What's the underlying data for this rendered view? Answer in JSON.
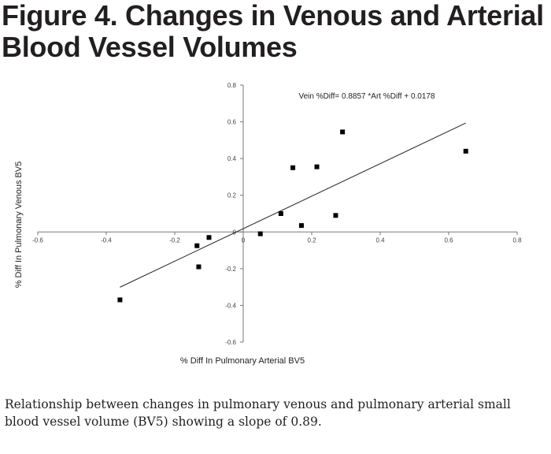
{
  "figure": {
    "title_line1": "Figure 4. Changes in Venous and Arterial",
    "title_line2": "Blood Vessel Volumes",
    "caption_line1": "Relationship between changes in pulmonary venous and pulmonary arterial small",
    "caption_line2": "blood vessel volume (BV5) showing a slope of 0.89."
  },
  "chart_data": {
    "type": "scatter",
    "title": "",
    "xlabel": "% Diff In Pulmonary Arterial BV5",
    "ylabel": "% Diff In Pulmonary Venous BV5",
    "xlim": [
      -0.6,
      0.8
    ],
    "ylim": [
      -0.6,
      0.8
    ],
    "x_ticks": [
      "-0.6",
      "-0.4",
      "-0.2",
      "0",
      "0.2",
      "0.4",
      "0.6",
      "0.8"
    ],
    "y_ticks": [
      "-0.6",
      "-0.4",
      "-0.2",
      "0",
      "0.2",
      "0.4",
      "0.6",
      "0.8"
    ],
    "grid": false,
    "legend": "none",
    "marker": "square",
    "marker_color": "#000000",
    "points": [
      {
        "x": -0.36,
        "y": -0.37
      },
      {
        "x": -0.135,
        "y": -0.075
      },
      {
        "x": -0.13,
        "y": -0.19
      },
      {
        "x": -0.1,
        "y": -0.03
      },
      {
        "x": 0.05,
        "y": -0.01
      },
      {
        "x": 0.11,
        "y": 0.1
      },
      {
        "x": 0.145,
        "y": 0.35
      },
      {
        "x": 0.17,
        "y": 0.035
      },
      {
        "x": 0.215,
        "y": 0.355
      },
      {
        "x": 0.27,
        "y": 0.09
      },
      {
        "x": 0.29,
        "y": 0.545
      },
      {
        "x": 0.65,
        "y": 0.44
      }
    ],
    "trendline": {
      "slope": 0.8857,
      "intercept": 0.0178,
      "x_range": [
        -0.36,
        0.65
      ],
      "label": "Vein %Diff= 0.8857 *Art %Diff  + 0.0178"
    }
  }
}
